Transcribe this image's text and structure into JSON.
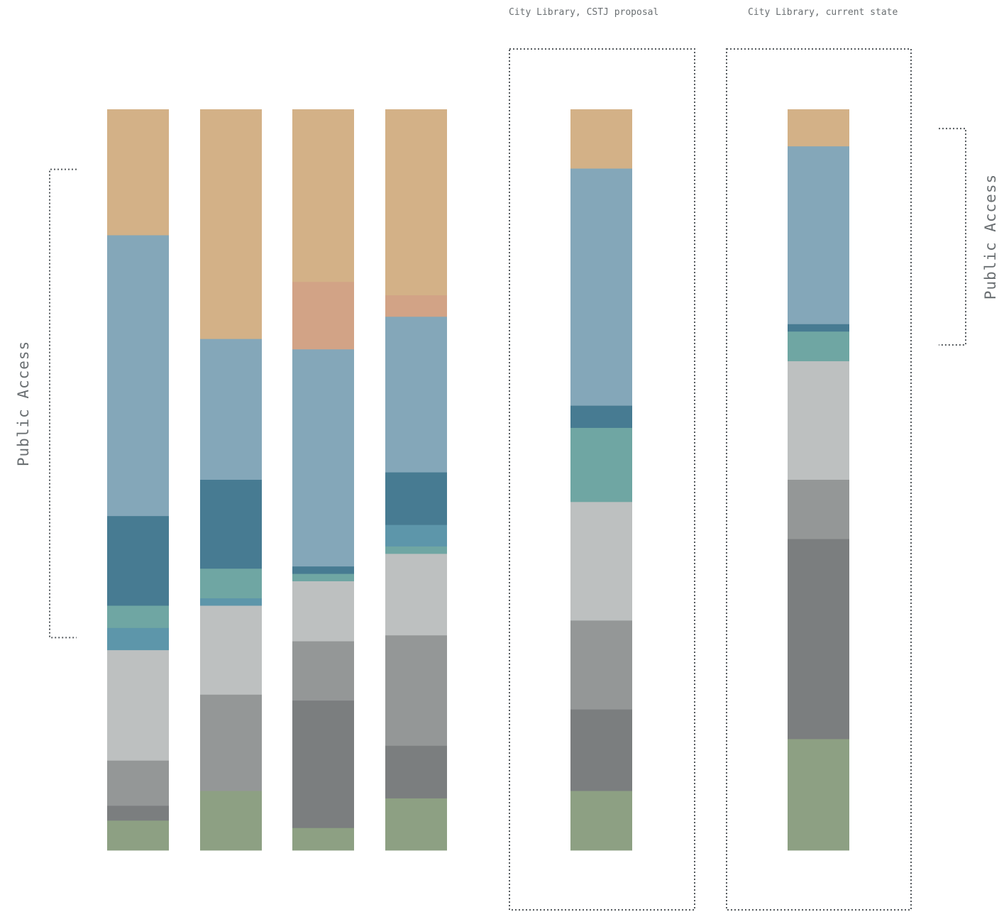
{
  "chart_data": {
    "type": "bar",
    "orientation": "vertical-stacked-100",
    "stack_order": "top-to-bottom",
    "columns": [
      {
        "title": "",
        "segments": [
          {
            "category": "tan",
            "value": 17.0
          },
          {
            "category": "light-blue",
            "value": 37.9
          },
          {
            "category": "dark-teal-blue",
            "value": 12.1
          },
          {
            "category": "teal",
            "value": 3.0
          },
          {
            "category": "medium-blue",
            "value": 3.0
          },
          {
            "category": "light-gray",
            "value": 14.9
          },
          {
            "category": "medium-gray",
            "value": 6.1
          },
          {
            "category": "dark-gray",
            "value": 2.0
          },
          {
            "category": "sage-green",
            "value": 4.0
          }
        ]
      },
      {
        "title": "",
        "segments": [
          {
            "category": "tan",
            "value": 31.0
          },
          {
            "category": "light-blue",
            "value": 19.0
          },
          {
            "category": "dark-teal-blue",
            "value": 12.0
          },
          {
            "category": "teal",
            "value": 4.0
          },
          {
            "category": "medium-blue",
            "value": 1.0
          },
          {
            "category": "light-gray",
            "value": 12.0
          },
          {
            "category": "medium-gray",
            "value": 13.0
          },
          {
            "category": "sage-green",
            "value": 8.0
          }
        ]
      },
      {
        "title": "",
        "segments": [
          {
            "category": "tan",
            "value": 23.3
          },
          {
            "category": "salmon",
            "value": 9.1
          },
          {
            "category": "light-blue",
            "value": 29.3
          },
          {
            "category": "dark-teal-blue",
            "value": 1.0
          },
          {
            "category": "teal",
            "value": 1.0
          },
          {
            "category": "light-gray",
            "value": 8.1
          },
          {
            "category": "medium-gray",
            "value": 8.0
          },
          {
            "category": "dark-gray",
            "value": 17.2
          },
          {
            "category": "sage-green",
            "value": 3.0
          }
        ]
      },
      {
        "title": "",
        "segments": [
          {
            "category": "tan",
            "value": 25.1
          },
          {
            "category": "salmon",
            "value": 2.9
          },
          {
            "category": "light-blue",
            "value": 21.0
          },
          {
            "category": "dark-teal-blue",
            "value": 7.1
          },
          {
            "category": "medium-blue",
            "value": 2.9
          },
          {
            "category": "teal",
            "value": 1.0
          },
          {
            "category": "light-gray",
            "value": 11.0
          },
          {
            "category": "medium-gray",
            "value": 14.9
          },
          {
            "category": "dark-gray",
            "value": 7.1
          },
          {
            "category": "sage-green",
            "value": 7.0
          }
        ]
      },
      {
        "title": "City Library, CSTJ proposal",
        "framed": true,
        "segments": [
          {
            "category": "tan",
            "value": 8.0
          },
          {
            "category": "light-blue",
            "value": 32.0
          },
          {
            "category": "dark-teal-blue",
            "value": 3.0
          },
          {
            "category": "teal",
            "value": 10.0
          },
          {
            "category": "light-gray",
            "value": 16.0
          },
          {
            "category": "medium-gray",
            "value": 12.0
          },
          {
            "category": "dark-gray",
            "value": 11.0
          },
          {
            "category": "sage-green",
            "value": 8.0
          }
        ]
      },
      {
        "title": "City Library, current state",
        "framed": true,
        "segments": [
          {
            "category": "tan",
            "value": 5.0
          },
          {
            "category": "light-blue",
            "value": 24.0
          },
          {
            "category": "dark-teal-blue",
            "value": 1.0
          },
          {
            "category": "teal",
            "value": 4.0
          },
          {
            "category": "light-gray",
            "value": 16.0
          },
          {
            "category": "medium-gray",
            "value": 8.0
          },
          {
            "category": "dark-gray",
            "value": 27.0
          },
          {
            "category": "sage-green",
            "value": 15.0
          }
        ]
      }
    ],
    "colors": {
      "tan": "#d3b187",
      "salmon": "#d2a386",
      "light-blue": "#84a7b9",
      "dark-teal-blue": "#477b92",
      "medium-blue": "#5d96aa",
      "teal": "#6fa6a3",
      "light-gray": "#bdc0c0",
      "medium-gray": "#949797",
      "dark-gray": "#7b7e7f",
      "sage-green": "#8da083"
    },
    "annotations": [
      {
        "label": "Public Access",
        "side": "left",
        "span_percent": [
          8.1,
          71.3
        ],
        "reference_column": 0
      },
      {
        "label": "Public Access",
        "side": "right",
        "span_percent": [
          2.6,
          31.8
        ],
        "reference_column": 5
      }
    ],
    "ylim": [
      0,
      100
    ],
    "grid": false,
    "legend": "none"
  }
}
